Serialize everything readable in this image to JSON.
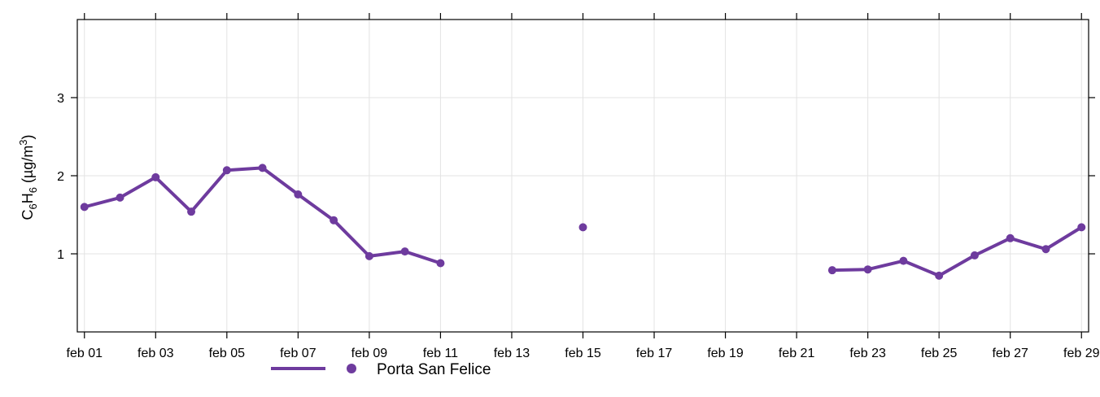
{
  "chart_data": {
    "type": "line",
    "ylabel": {
      "base1": "C",
      "sub1": "6",
      "base2": "H",
      "sub2": "6",
      "open": " (µg/m",
      "sup": "3",
      "close": ")"
    },
    "ylim": [
      0,
      4
    ],
    "yticks": [
      1,
      2,
      3
    ],
    "xlim": [
      0.8,
      29.2
    ],
    "xticks": [
      {
        "day": 1,
        "label": "feb 01"
      },
      {
        "day": 3,
        "label": "feb 03"
      },
      {
        "day": 5,
        "label": "feb 05"
      },
      {
        "day": 7,
        "label": "feb 07"
      },
      {
        "day": 9,
        "label": "feb 09"
      },
      {
        "day": 11,
        "label": "feb 11"
      },
      {
        "day": 13,
        "label": "feb 13"
      },
      {
        "day": 15,
        "label": "feb 15"
      },
      {
        "day": 17,
        "label": "feb 17"
      },
      {
        "day": 19,
        "label": "feb 19"
      },
      {
        "day": 21,
        "label": "feb 21"
      },
      {
        "day": 23,
        "label": "feb 23"
      },
      {
        "day": 25,
        "label": "feb 25"
      },
      {
        "day": 27,
        "label": "feb 27"
      },
      {
        "day": 29,
        "label": "feb 29"
      }
    ],
    "grid": true,
    "legend_position": "bottom",
    "series": [
      {
        "name": "Porta San Felice",
        "color": "#6e3b9e",
        "x": [
          1,
          2,
          3,
          4,
          5,
          6,
          7,
          8,
          9,
          10,
          11,
          12,
          13,
          14,
          15,
          16,
          17,
          18,
          19,
          20,
          21,
          22,
          23,
          24,
          25,
          26,
          27,
          28,
          29
        ],
        "y": [
          1.6,
          1.72,
          1.98,
          1.54,
          2.07,
          2.1,
          1.76,
          1.43,
          0.97,
          1.03,
          0.88,
          null,
          null,
          null,
          1.34,
          null,
          null,
          null,
          null,
          null,
          null,
          0.79,
          0.8,
          0.91,
          0.72,
          0.98,
          1.2,
          1.06,
          1.34
        ]
      }
    ]
  }
}
